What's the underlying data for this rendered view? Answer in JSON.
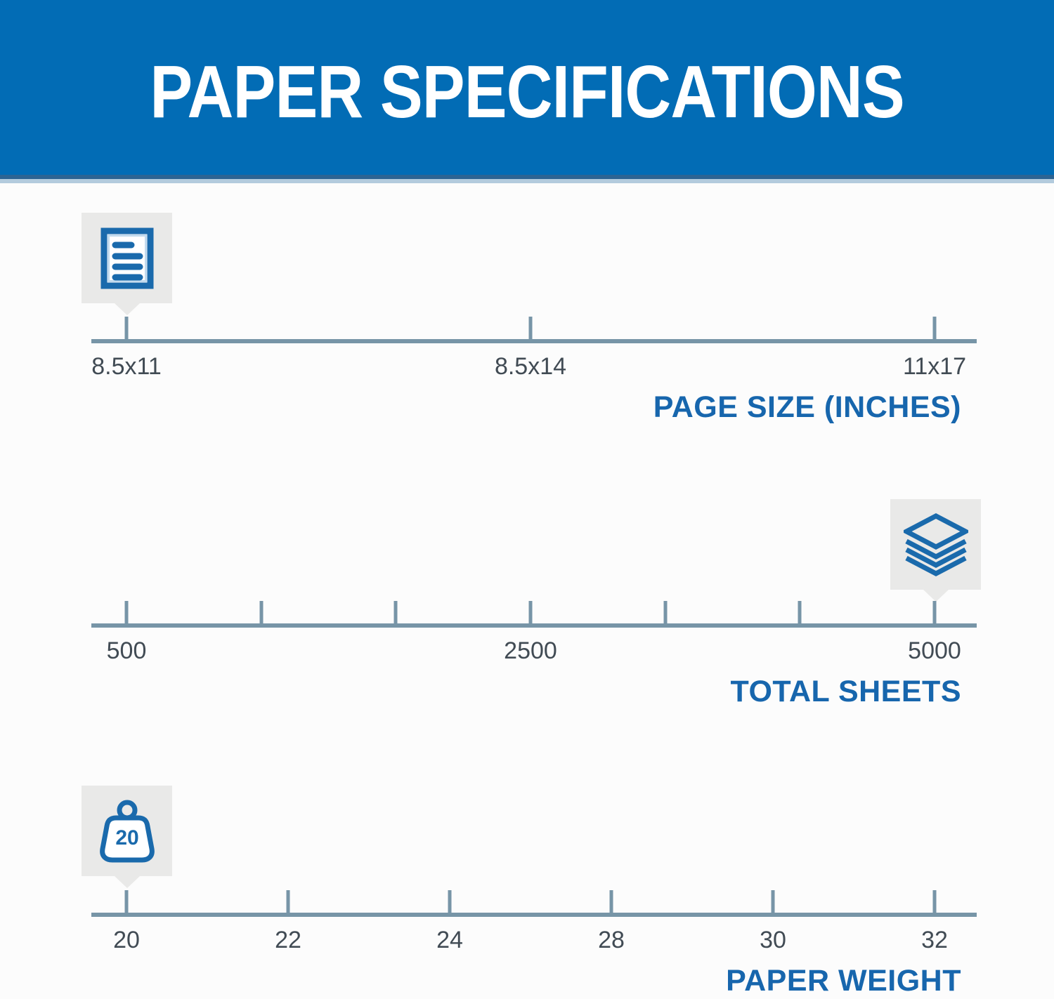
{
  "header": {
    "title": "PAPER SPECIFICATIONS",
    "bg_color": "#026cb5",
    "text_color": "#ffffff"
  },
  "colors": {
    "axis": "#7795a7",
    "section_label_blue": "#1766ad",
    "tick_label_text": "#414b54",
    "tooltip_bg": "#e9e9e8",
    "icon_blue": "#1a6aac"
  },
  "chart_data": [
    {
      "type": "scale",
      "title": "PAGE SIZE (INCHES)",
      "axis_range": [
        "8.5x11",
        "11x17"
      ],
      "ticks": [
        {
          "pos": 0,
          "label": "8.5x11"
        },
        {
          "pos": 50,
          "label": "8.5x14"
        },
        {
          "pos": 100,
          "label": "11x17"
        }
      ],
      "marker": {
        "value": "8.5x11",
        "pos": 0,
        "icon": "document-icon"
      }
    },
    {
      "type": "scale",
      "title": "TOTAL SHEETS",
      "axis_range": [
        500,
        5000
      ],
      "ticks": [
        {
          "pos": 0,
          "label": "500"
        },
        {
          "pos": 16.667,
          "label": ""
        },
        {
          "pos": 33.333,
          "label": ""
        },
        {
          "pos": 50,
          "label": "2500"
        },
        {
          "pos": 66.667,
          "label": ""
        },
        {
          "pos": 83.333,
          "label": ""
        },
        {
          "pos": 100,
          "label": "5000"
        }
      ],
      "marker": {
        "value": "5000",
        "pos": 100,
        "icon": "paper-stack-icon"
      }
    },
    {
      "type": "scale",
      "title": "PAPER WEIGHT",
      "axis_range": [
        20,
        32
      ],
      "ticks": [
        {
          "pos": 0,
          "label": "20"
        },
        {
          "pos": 20,
          "label": "22"
        },
        {
          "pos": 40,
          "label": "24"
        },
        {
          "pos": 60,
          "label": "28"
        },
        {
          "pos": 80,
          "label": "30"
        },
        {
          "pos": 100,
          "label": "32"
        }
      ],
      "marker": {
        "value": "20",
        "pos": 0,
        "icon": "weight-icon",
        "icon_text": "20"
      }
    }
  ]
}
